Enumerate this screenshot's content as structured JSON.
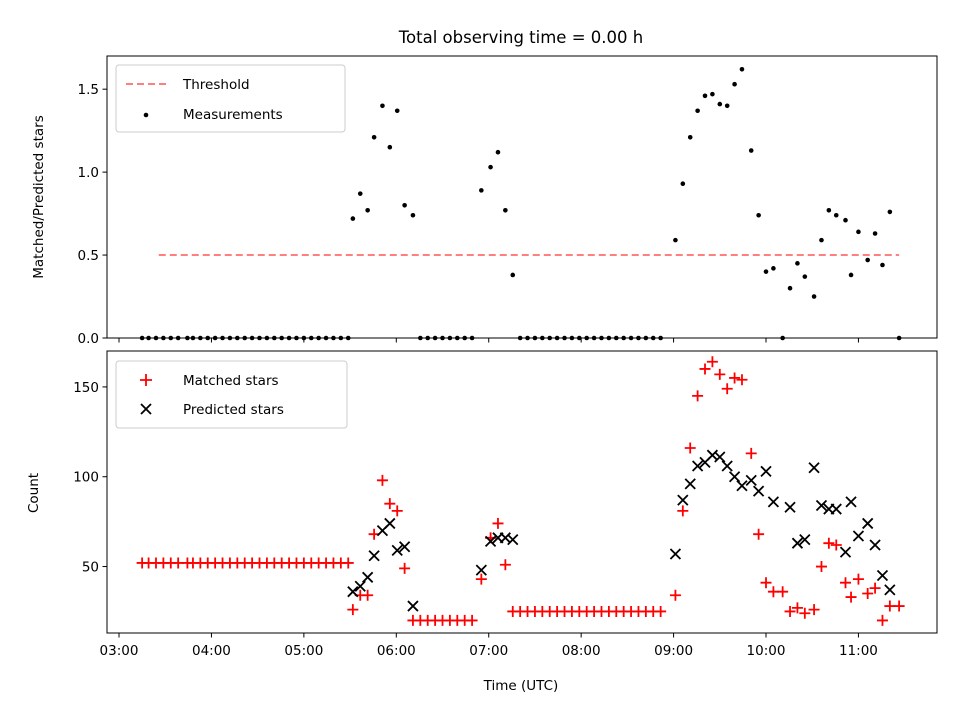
{
  "chart_data": [
    {
      "type": "scatter",
      "title": "Total observing time = 0.00 h",
      "ylabel": "Matched/Predicted stars",
      "ylim": [
        0,
        1.7
      ],
      "yticks": [
        "0.0",
        "0.5",
        "1.0",
        "1.5"
      ],
      "legend_position": "top-left",
      "threshold": {
        "name": "Threshold",
        "value": 0.5,
        "x": [
          3.43,
          11.44
        ],
        "color": "#ff7f7f",
        "style": "dashed"
      },
      "series": [
        {
          "name": "Measurements",
          "marker": "dot",
          "color": "#000000",
          "points": [
            [
              3.25,
              0
            ],
            [
              3.32,
              0
            ],
            [
              3.4,
              0
            ],
            [
              3.48,
              0
            ],
            [
              3.56,
              0
            ],
            [
              3.64,
              0
            ],
            [
              3.74,
              0
            ],
            [
              3.8,
              0
            ],
            [
              3.88,
              0
            ],
            [
              3.96,
              0
            ],
            [
              4.04,
              0
            ],
            [
              4.12,
              0
            ],
            [
              4.2,
              0
            ],
            [
              4.28,
              0
            ],
            [
              4.36,
              0
            ],
            [
              4.44,
              0
            ],
            [
              4.52,
              0
            ],
            [
              4.6,
              0
            ],
            [
              4.68,
              0
            ],
            [
              4.76,
              0
            ],
            [
              4.84,
              0
            ],
            [
              4.92,
              0
            ],
            [
              5.0,
              0
            ],
            [
              5.08,
              0
            ],
            [
              5.16,
              0
            ],
            [
              5.24,
              0
            ],
            [
              5.32,
              0
            ],
            [
              5.4,
              0
            ],
            [
              5.48,
              0
            ],
            [
              5.53,
              0.72
            ],
            [
              5.61,
              0.87
            ],
            [
              5.69,
              0.77
            ],
            [
              5.76,
              1.21
            ],
            [
              5.85,
              1.4
            ],
            [
              5.93,
              1.15
            ],
            [
              6.01,
              1.37
            ],
            [
              6.09,
              0.8
            ],
            [
              6.18,
              0.74
            ],
            [
              6.26,
              0
            ],
            [
              6.34,
              0
            ],
            [
              6.42,
              0
            ],
            [
              6.5,
              0
            ],
            [
              6.58,
              0
            ],
            [
              6.66,
              0
            ],
            [
              6.74,
              0
            ],
            [
              6.82,
              0
            ],
            [
              6.92,
              0.89
            ],
            [
              7.02,
              1.03
            ],
            [
              7.1,
              1.12
            ],
            [
              7.18,
              0.77
            ],
            [
              7.26,
              0.38
            ],
            [
              7.34,
              0
            ],
            [
              7.42,
              0
            ],
            [
              7.5,
              0
            ],
            [
              7.58,
              0
            ],
            [
              7.66,
              0
            ],
            [
              7.74,
              0
            ],
            [
              7.82,
              0
            ],
            [
              7.9,
              0
            ],
            [
              7.98,
              0
            ],
            [
              8.06,
              0
            ],
            [
              8.14,
              0
            ],
            [
              8.22,
              0
            ],
            [
              8.3,
              0
            ],
            [
              8.38,
              0
            ],
            [
              8.46,
              0
            ],
            [
              8.54,
              0
            ],
            [
              8.62,
              0
            ],
            [
              8.7,
              0
            ],
            [
              8.78,
              0
            ],
            [
              8.86,
              0
            ],
            [
              9.02,
              0.59
            ],
            [
              9.1,
              0.93
            ],
            [
              9.18,
              1.21
            ],
            [
              9.26,
              1.37
            ],
            [
              9.34,
              1.46
            ],
            [
              9.42,
              1.47
            ],
            [
              9.5,
              1.41
            ],
            [
              9.58,
              1.4
            ],
            [
              9.66,
              1.53
            ],
            [
              9.74,
              1.62
            ],
            [
              9.84,
              1.13
            ],
            [
              9.92,
              0.74
            ],
            [
              10.0,
              0.4
            ],
            [
              10.08,
              0.42
            ],
            [
              10.18,
              0
            ],
            [
              10.26,
              0.3
            ],
            [
              10.34,
              0.45
            ],
            [
              10.42,
              0.37
            ],
            [
              10.52,
              0.25
            ],
            [
              10.6,
              0.59
            ],
            [
              10.68,
              0.77
            ],
            [
              10.76,
              0.74
            ],
            [
              10.86,
              0.71
            ],
            [
              10.92,
              0.38
            ],
            [
              11.0,
              0.64
            ],
            [
              11.1,
              0.47
            ],
            [
              11.18,
              0.63
            ],
            [
              11.26,
              0.44
            ],
            [
              11.34,
              0.76
            ],
            [
              11.44,
              0
            ]
          ]
        }
      ]
    },
    {
      "type": "scatter",
      "xlabel": "Time (UTC)",
      "ylabel": "Count",
      "xlim": [
        2.87,
        11.85
      ],
      "ylim": [
        13,
        170
      ],
      "xticks": [
        "03:00",
        "04:00",
        "05:00",
        "06:00",
        "07:00",
        "08:00",
        "09:00",
        "10:00",
        "11:00"
      ],
      "yticks": [
        "50",
        "100",
        "150"
      ],
      "legend_position": "top-left",
      "series": [
        {
          "name": "Matched stars",
          "marker": "plus",
          "color": "#ff0000",
          "points": [
            [
              3.25,
              52
            ],
            [
              3.32,
              52
            ],
            [
              3.4,
              52
            ],
            [
              3.48,
              52
            ],
            [
              3.56,
              52
            ],
            [
              3.64,
              52
            ],
            [
              3.74,
              52
            ],
            [
              3.8,
              52
            ],
            [
              3.88,
              52
            ],
            [
              3.96,
              52
            ],
            [
              4.04,
              52
            ],
            [
              4.12,
              52
            ],
            [
              4.2,
              52
            ],
            [
              4.28,
              52
            ],
            [
              4.36,
              52
            ],
            [
              4.44,
              52
            ],
            [
              4.52,
              52
            ],
            [
              4.6,
              52
            ],
            [
              4.68,
              52
            ],
            [
              4.76,
              52
            ],
            [
              4.84,
              52
            ],
            [
              4.92,
              52
            ],
            [
              5.0,
              52
            ],
            [
              5.08,
              52
            ],
            [
              5.16,
              52
            ],
            [
              5.24,
              52
            ],
            [
              5.32,
              52
            ],
            [
              5.4,
              52
            ],
            [
              5.48,
              52
            ],
            [
              5.53,
              26
            ],
            [
              5.61,
              34
            ],
            [
              5.69,
              34
            ],
            [
              5.76,
              68
            ],
            [
              5.85,
              98
            ],
            [
              5.93,
              85
            ],
            [
              6.01,
              81
            ],
            [
              6.09,
              49
            ],
            [
              6.18,
              20
            ],
            [
              6.26,
              20
            ],
            [
              6.34,
              20
            ],
            [
              6.42,
              20
            ],
            [
              6.5,
              20
            ],
            [
              6.58,
              20
            ],
            [
              6.66,
              20
            ],
            [
              6.74,
              20
            ],
            [
              6.82,
              20
            ],
            [
              6.92,
              43
            ],
            [
              7.02,
              66
            ],
            [
              7.1,
              74
            ],
            [
              7.18,
              51
            ],
            [
              7.26,
              25
            ],
            [
              7.34,
              25
            ],
            [
              7.42,
              25
            ],
            [
              7.5,
              25
            ],
            [
              7.58,
              25
            ],
            [
              7.66,
              25
            ],
            [
              7.74,
              25
            ],
            [
              7.82,
              25
            ],
            [
              7.9,
              25
            ],
            [
              7.98,
              25
            ],
            [
              8.06,
              25
            ],
            [
              8.14,
              25
            ],
            [
              8.22,
              25
            ],
            [
              8.3,
              25
            ],
            [
              8.38,
              25
            ],
            [
              8.46,
              25
            ],
            [
              8.54,
              25
            ],
            [
              8.62,
              25
            ],
            [
              8.7,
              25
            ],
            [
              8.78,
              25
            ],
            [
              8.86,
              25
            ],
            [
              9.02,
              34
            ],
            [
              9.1,
              81
            ],
            [
              9.18,
              116
            ],
            [
              9.26,
              145
            ],
            [
              9.34,
              160
            ],
            [
              9.42,
              164
            ],
            [
              9.5,
              157
            ],
            [
              9.58,
              149
            ],
            [
              9.66,
              155
            ],
            [
              9.74,
              154
            ],
            [
              9.84,
              113
            ],
            [
              9.92,
              68
            ],
            [
              10.0,
              41
            ],
            [
              10.08,
              36
            ],
            [
              10.18,
              36
            ],
            [
              10.26,
              25
            ],
            [
              10.34,
              27
            ],
            [
              10.42,
              24
            ],
            [
              10.52,
              26
            ],
            [
              10.6,
              50
            ],
            [
              10.68,
              63
            ],
            [
              10.76,
              62
            ],
            [
              10.86,
              41
            ],
            [
              10.92,
              33
            ],
            [
              11.0,
              43
            ],
            [
              11.1,
              35
            ],
            [
              11.18,
              38
            ],
            [
              11.26,
              20
            ],
            [
              11.34,
              28
            ],
            [
              11.44,
              28
            ]
          ]
        },
        {
          "name": "Predicted stars",
          "marker": "x",
          "color": "#000000",
          "points": [
            [
              5.53,
              36
            ],
            [
              5.61,
              39
            ],
            [
              5.69,
              44
            ],
            [
              5.76,
              56
            ],
            [
              5.85,
              70
            ],
            [
              5.93,
              74
            ],
            [
              6.01,
              59
            ],
            [
              6.09,
              61
            ],
            [
              6.18,
              28
            ],
            [
              6.92,
              48
            ],
            [
              7.02,
              64
            ],
            [
              7.1,
              66
            ],
            [
              7.18,
              66
            ],
            [
              7.26,
              65
            ],
            [
              9.02,
              57
            ],
            [
              9.1,
              87
            ],
            [
              9.18,
              96
            ],
            [
              9.26,
              106
            ],
            [
              9.34,
              108
            ],
            [
              9.42,
              112
            ],
            [
              9.5,
              111
            ],
            [
              9.58,
              106
            ],
            [
              9.66,
              100
            ],
            [
              9.74,
              95
            ],
            [
              9.84,
              98
            ],
            [
              9.92,
              92
            ],
            [
              10.0,
              103
            ],
            [
              10.08,
              86
            ],
            [
              10.26,
              83
            ],
            [
              10.34,
              63
            ],
            [
              10.42,
              65
            ],
            [
              10.52,
              105
            ],
            [
              10.6,
              84
            ],
            [
              10.68,
              82
            ],
            [
              10.76,
              82
            ],
            [
              10.86,
              58
            ],
            [
              10.92,
              86
            ],
            [
              11.0,
              67
            ],
            [
              11.1,
              74
            ],
            [
              11.18,
              62
            ],
            [
              11.26,
              45
            ],
            [
              11.34,
              37
            ]
          ]
        }
      ]
    }
  ]
}
